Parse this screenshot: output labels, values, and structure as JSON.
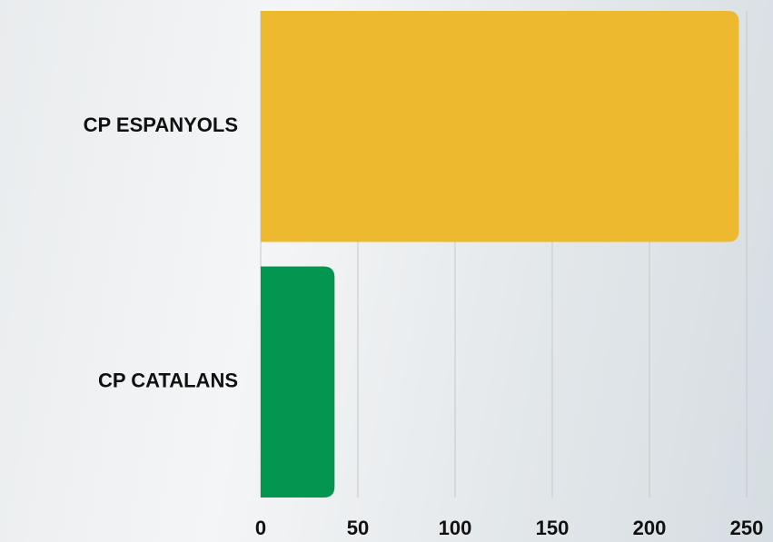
{
  "chart_data": {
    "type": "bar",
    "orientation": "horizontal",
    "categories": [
      "CP ESPANYOLS",
      "CP CATALANS"
    ],
    "values": [
      246,
      38
    ],
    "colors": [
      "#edb92e",
      "#039651"
    ],
    "xlim": [
      0,
      250
    ],
    "xticks": [
      0,
      50,
      100,
      150,
      200,
      250
    ],
    "grid": true
  }
}
